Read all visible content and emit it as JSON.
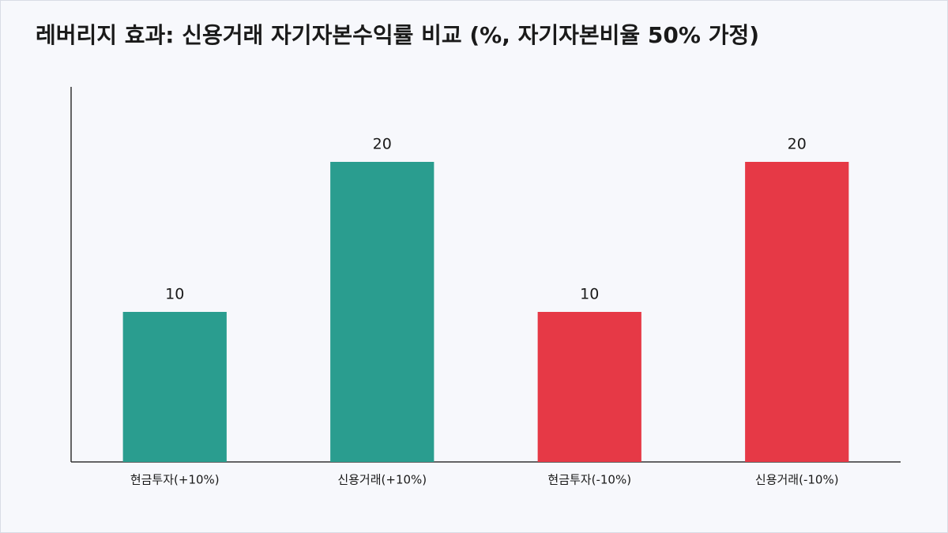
{
  "chart_data": {
    "type": "bar",
    "title": "레버리지 효과: 신용거래 자기자본수익률 비교 (%, 자기자본비율 50% 가정)",
    "categories": [
      "현금투자(+10%)",
      "신용거래(+10%)",
      "현금투자(-10%)",
      "신용거래(-10%)"
    ],
    "values": [
      10,
      20,
      10,
      20
    ],
    "colors": [
      "#2a9d8f",
      "#2a9d8f",
      "#e63946",
      "#e63946"
    ],
    "ylim": [
      0,
      25
    ]
  }
}
